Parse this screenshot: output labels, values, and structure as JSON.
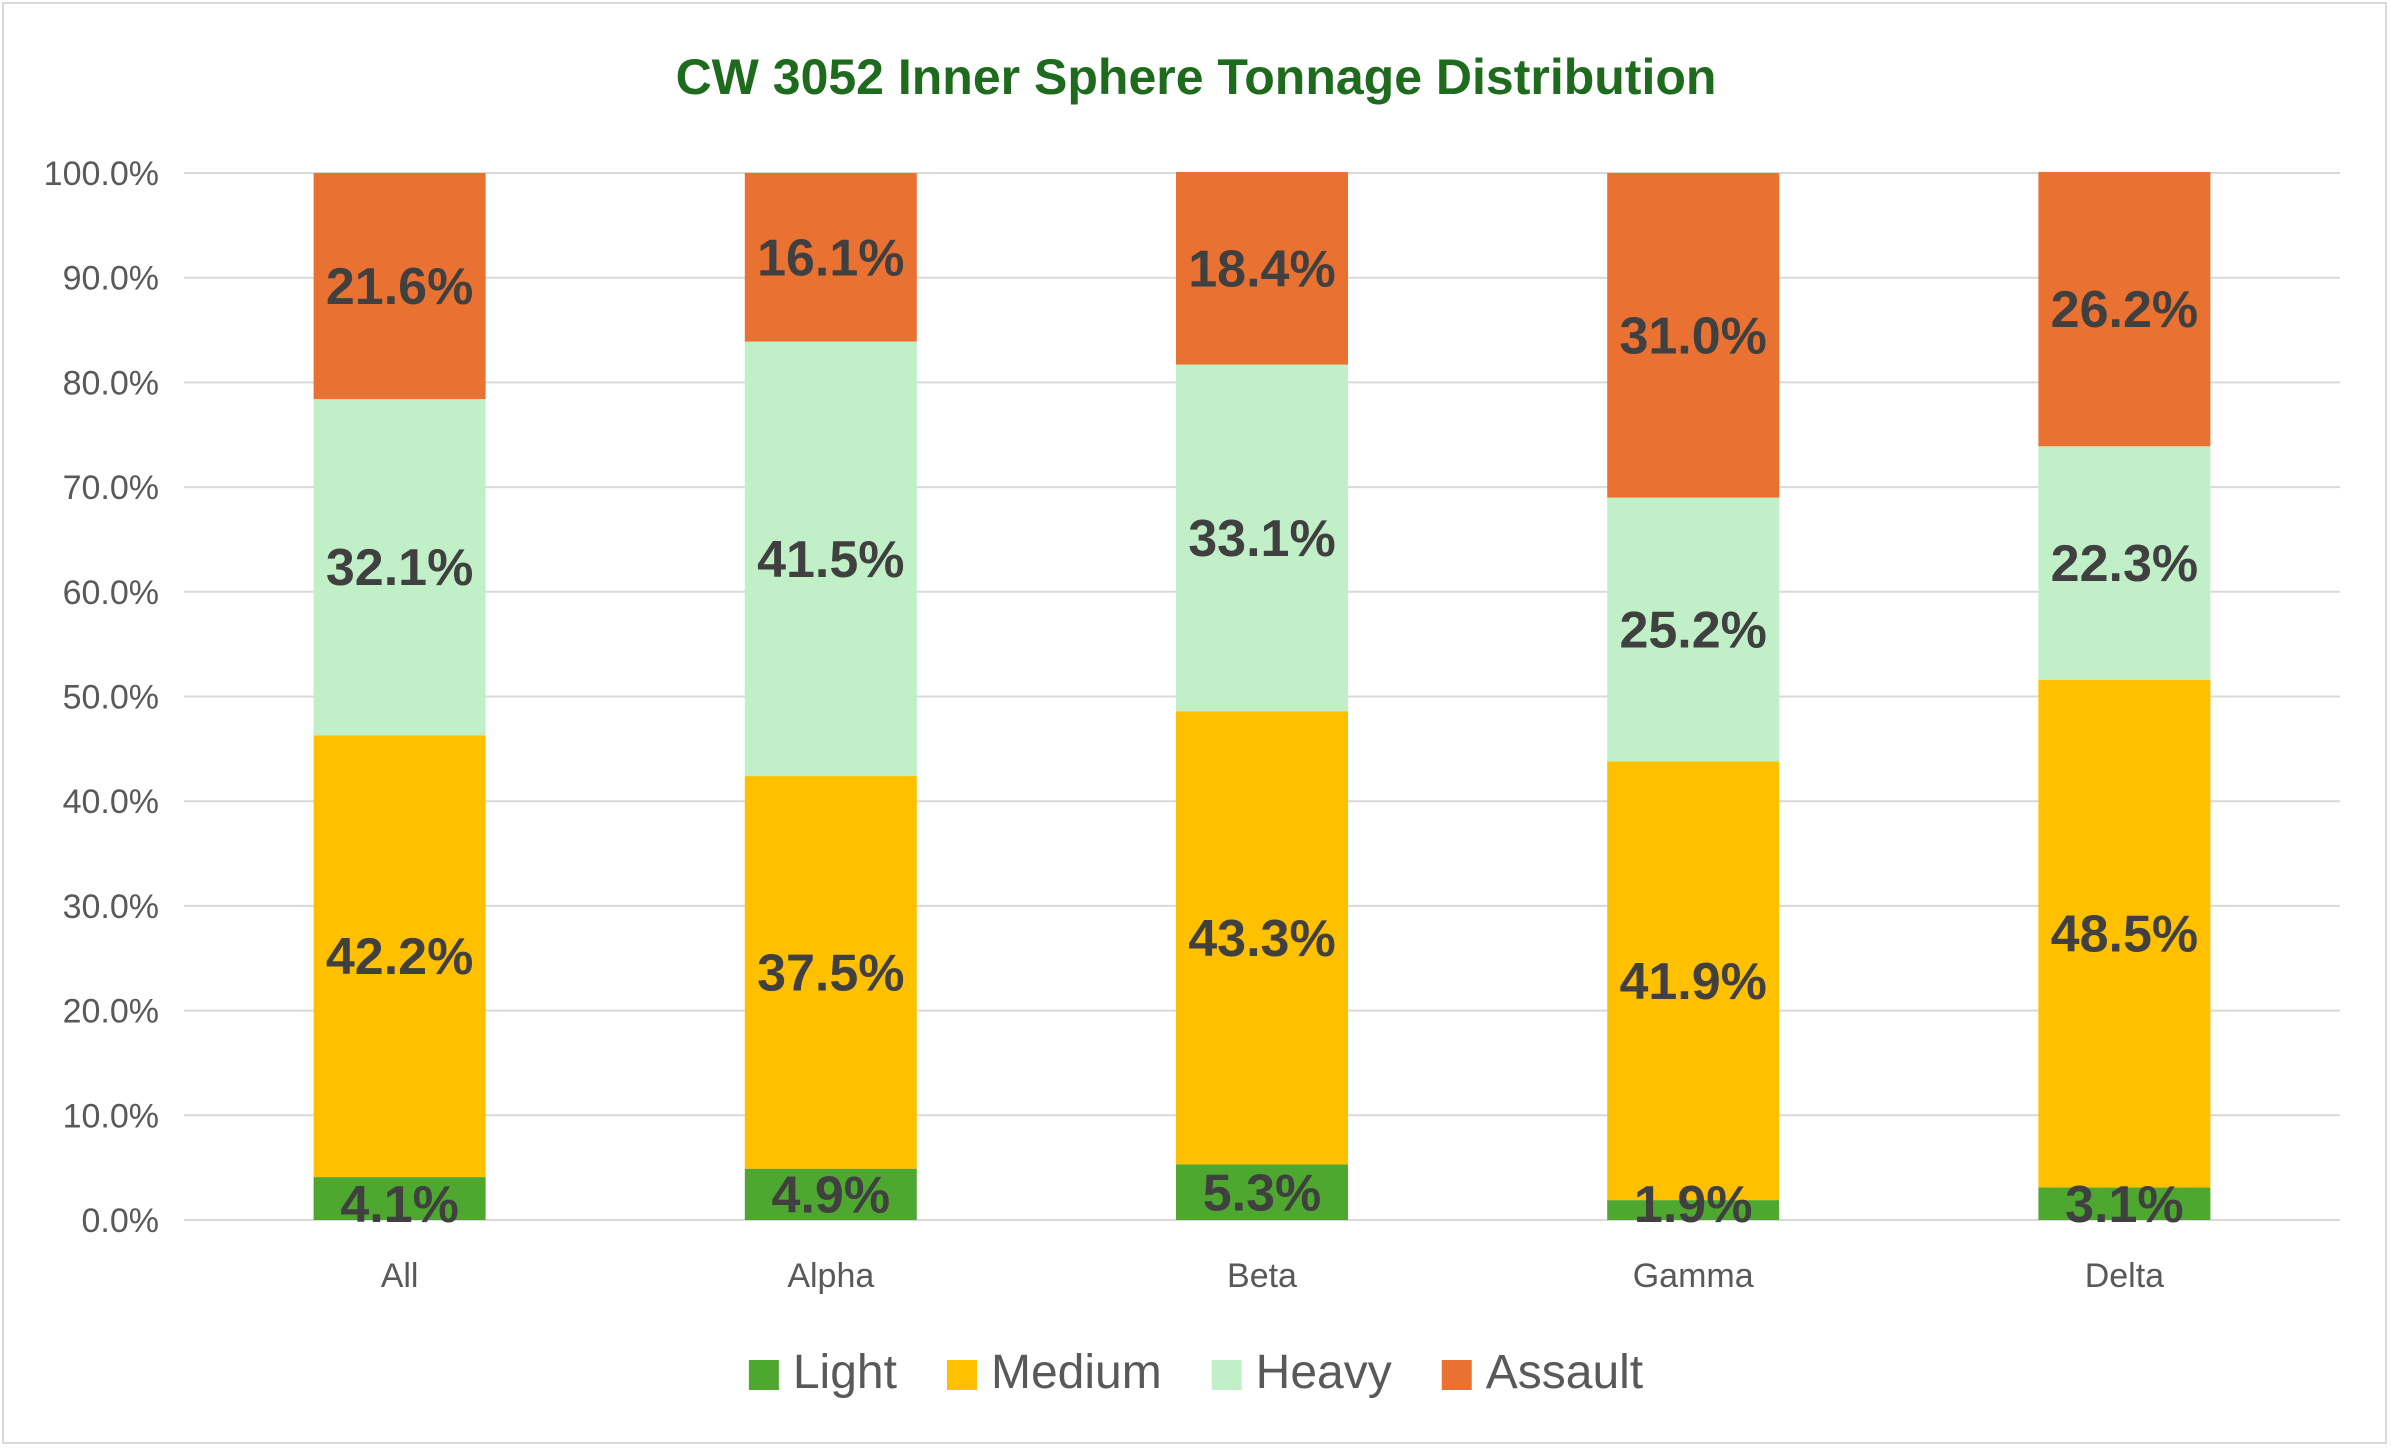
{
  "chart_data": {
    "type": "bar",
    "stacked": true,
    "title": "CW 3052 Inner Sphere Tonnage Distribution",
    "xlabel": "",
    "ylabel": "",
    "categories": [
      "All",
      "Alpha",
      "Beta",
      "Gamma",
      "Delta"
    ],
    "series": [
      {
        "name": "Light",
        "color": "#4ea72e",
        "values": [
          4.1,
          4.9,
          5.3,
          1.9,
          3.1
        ],
        "labels": [
          "4.1%",
          "4.9%",
          "5.3%",
          "1.9%",
          "3.1%"
        ]
      },
      {
        "name": "Medium",
        "color": "#ffc000",
        "values": [
          42.2,
          37.5,
          43.3,
          41.9,
          48.5
        ],
        "labels": [
          "42.2%",
          "37.5%",
          "43.3%",
          "41.9%",
          "48.5%"
        ]
      },
      {
        "name": "Heavy",
        "color": "#c1f0c8",
        "values": [
          32.1,
          41.5,
          33.1,
          25.2,
          22.3
        ],
        "labels": [
          "32.1%",
          "41.5%",
          "33.1%",
          "25.2%",
          "22.3%"
        ]
      },
      {
        "name": "Assault",
        "color": "#e97132",
        "values": [
          21.6,
          16.1,
          18.4,
          31.0,
          26.2
        ],
        "labels": [
          "21.6%",
          "16.1%",
          "18.4%",
          "31.0%",
          "26.2%"
        ]
      }
    ],
    "ylim": [
      0,
      100
    ],
    "yticks": [
      0,
      10,
      20,
      30,
      40,
      50,
      60,
      70,
      80,
      90,
      100
    ],
    "ytick_labels": [
      "0.0%",
      "10.0%",
      "20.0%",
      "30.0%",
      "40.0%",
      "50.0%",
      "60.0%",
      "70.0%",
      "80.0%",
      "90.0%",
      "100.0%"
    ],
    "grid": true,
    "legend_position": "bottom",
    "colors": {
      "title": "#1e6b1e",
      "tick_text": "#595959",
      "label_text": "#404040",
      "grid": "#d9d9d9"
    }
  }
}
